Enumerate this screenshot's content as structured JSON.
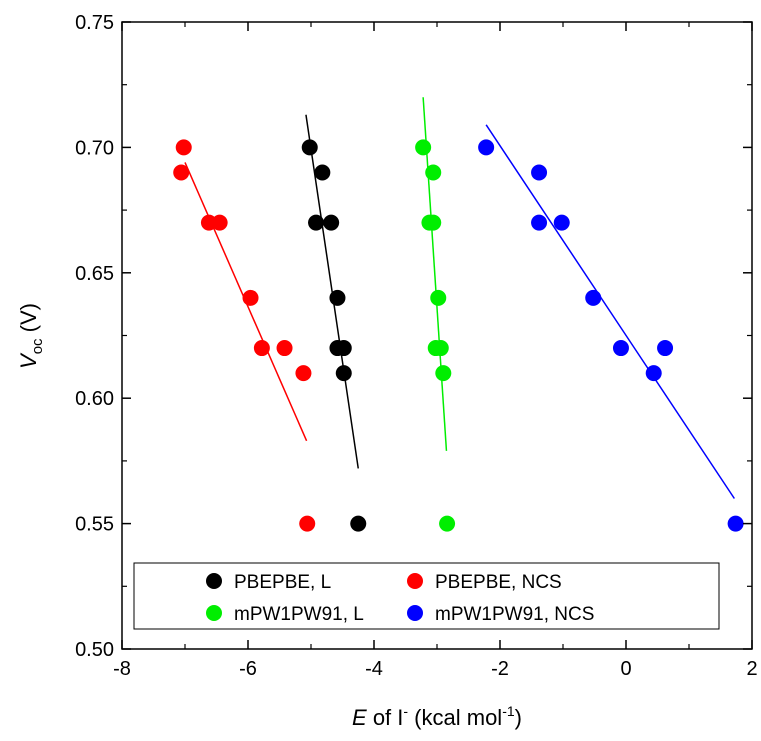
{
  "chart_data": {
    "type": "scatter",
    "title": "",
    "xlabel": {
      "main": "E",
      "mid": " of I",
      "sup": "-",
      "tail": " (kcal mol",
      "tail_sup": "-1",
      "end": ")"
    },
    "ylabel": {
      "main": "V",
      "sub": "oc",
      "tail": " (V)"
    },
    "xlim": [
      -8,
      2
    ],
    "ylim": [
      0.5,
      0.75
    ],
    "xticks": [
      -8,
      -6,
      -4,
      -2,
      0,
      2
    ],
    "yticks": [
      0.5,
      0.55,
      0.6,
      0.65,
      0.7,
      0.75
    ],
    "xtick_labels": [
      "-8",
      "-6",
      "-4",
      "-2",
      "0",
      "2"
    ],
    "ytick_labels": [
      "0.50",
      "0.55",
      "0.60",
      "0.65",
      "0.70",
      "0.75"
    ],
    "grid": false,
    "legend": "bottom",
    "series": [
      {
        "name": "PBEPBE, L",
        "color": "#000000",
        "points": [
          [
            -5.02,
            0.7
          ],
          [
            -4.82,
            0.69
          ],
          [
            -4.92,
            0.67
          ],
          [
            -4.68,
            0.67
          ],
          [
            -4.58,
            0.64
          ],
          [
            -4.58,
            0.62
          ],
          [
            -4.48,
            0.62
          ],
          [
            -4.48,
            0.61
          ],
          [
            -4.25,
            0.55
          ]
        ],
        "fit": [
          [
            -5.08,
            0.713
          ],
          [
            -4.25,
            0.572
          ]
        ]
      },
      {
        "name": "PBEPBE, NCS",
        "color": "#ff0000",
        "points": [
          [
            -7.02,
            0.7
          ],
          [
            -7.06,
            0.69
          ],
          [
            -6.62,
            0.67
          ],
          [
            -6.45,
            0.67
          ],
          [
            -5.96,
            0.64
          ],
          [
            -5.78,
            0.62
          ],
          [
            -5.42,
            0.62
          ],
          [
            -5.12,
            0.61
          ],
          [
            -5.06,
            0.55
          ]
        ],
        "fit": [
          [
            -7.0,
            0.694
          ],
          [
            -5.07,
            0.583
          ]
        ]
      },
      {
        "name": "mPW1PW91, L",
        "color": "#00ee00",
        "points": [
          [
            -3.22,
            0.7
          ],
          [
            -3.06,
            0.69
          ],
          [
            -3.12,
            0.67
          ],
          [
            -3.06,
            0.67
          ],
          [
            -2.98,
            0.64
          ],
          [
            -3.02,
            0.62
          ],
          [
            -2.94,
            0.62
          ],
          [
            -2.9,
            0.61
          ],
          [
            -2.84,
            0.55
          ]
        ],
        "fit": [
          [
            -3.22,
            0.72
          ],
          [
            -2.85,
            0.579
          ]
        ]
      },
      {
        "name": "mPW1PW91, NCS",
        "color": "#0000ff",
        "points": [
          [
            -2.22,
            0.7
          ],
          [
            -1.38,
            0.69
          ],
          [
            -1.38,
            0.67
          ],
          [
            -1.02,
            0.67
          ],
          [
            -0.52,
            0.64
          ],
          [
            -0.08,
            0.62
          ],
          [
            0.62,
            0.62
          ],
          [
            0.44,
            0.61
          ],
          [
            1.74,
            0.55
          ]
        ],
        "fit": [
          [
            -2.22,
            0.709
          ],
          [
            1.72,
            0.56
          ]
        ]
      }
    ]
  }
}
